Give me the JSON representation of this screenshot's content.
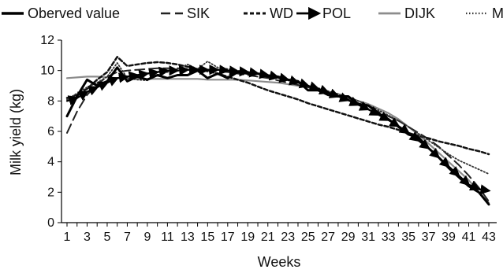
{
  "chart_data": {
    "type": "line",
    "xlabel": "Weeks",
    "ylabel": "Milk yield (kg)",
    "ylim": [
      0,
      12
    ],
    "yticks": [
      0,
      2,
      4,
      6,
      8,
      10,
      12
    ],
    "xlim": [
      1,
      43
    ],
    "x_tick_labels": [
      "1",
      "3",
      "5",
      "7",
      "9",
      "11",
      "13",
      "15",
      "17",
      "19",
      "21",
      "23",
      "25",
      "27",
      "29",
      "31",
      "33",
      "35",
      "37",
      "39",
      "41",
      "43"
    ],
    "grid": false,
    "legend_position": "top",
    "x": [
      1,
      2,
      3,
      4,
      5,
      6,
      7,
      8,
      9,
      10,
      11,
      12,
      13,
      14,
      15,
      16,
      17,
      18,
      19,
      20,
      21,
      22,
      23,
      24,
      25,
      26,
      27,
      28,
      29,
      30,
      31,
      32,
      33,
      34,
      35,
      36,
      37,
      38,
      39,
      40,
      41,
      42,
      43
    ],
    "series": [
      {
        "name": "Oberved value",
        "style": "solid-thick",
        "color": "#000000",
        "values": [
          7.0,
          8.3,
          9.4,
          9.0,
          9.3,
          10.2,
          9.3,
          9.6,
          9.4,
          9.7,
          9.5,
          9.7,
          9.7,
          10.0,
          9.5,
          9.8,
          9.5,
          9.9,
          9.8,
          9.8,
          9.6,
          9.6,
          9.4,
          9.3,
          8.7,
          8.7,
          8.4,
          8.3,
          8.3,
          7.8,
          7.7,
          7.2,
          6.8,
          6.3,
          5.8,
          5.6,
          4.9,
          4.3,
          3.6,
          3.0,
          2.4,
          2.0,
          1.2
        ]
      },
      {
        "name": "SIK",
        "style": "long-dash",
        "color": "#222222",
        "values": [
          5.9,
          7.3,
          8.4,
          9.1,
          9.6,
          9.9,
          10.0,
          10.05,
          10.1,
          10.15,
          10.15,
          10.15,
          10.1,
          10.05,
          10.0,
          9.95,
          9.9,
          9.8,
          9.7,
          9.6,
          9.5,
          9.35,
          9.2,
          9.05,
          8.9,
          8.7,
          8.5,
          8.3,
          8.1,
          7.85,
          7.6,
          7.3,
          7.0,
          6.7,
          6.3,
          5.9,
          5.5,
          5.0,
          4.4,
          3.8,
          3.1,
          2.3,
          1.4
        ]
      },
      {
        "name": "WD",
        "style": "short-dash",
        "color": "#111111",
        "values": [
          8.2,
          8.4,
          8.8,
          9.4,
          9.9,
          10.9,
          10.3,
          10.4,
          10.5,
          10.55,
          10.5,
          10.4,
          10.25,
          10.1,
          9.95,
          9.8,
          9.6,
          9.4,
          9.2,
          8.95,
          8.7,
          8.5,
          8.3,
          8.1,
          7.85,
          7.65,
          7.45,
          7.25,
          7.05,
          6.85,
          6.65,
          6.45,
          6.3,
          6.1,
          5.9,
          5.7,
          5.55,
          5.35,
          5.2,
          5.05,
          4.85,
          4.7,
          4.5
        ]
      },
      {
        "name": "POL",
        "style": "arrow",
        "color": "#000000",
        "values": [
          8.0,
          8.2,
          8.6,
          8.9,
          9.2,
          9.5,
          9.6,
          9.7,
          9.8,
          9.9,
          10.0,
          10.0,
          10.05,
          10.05,
          10.05,
          10.05,
          10.0,
          9.95,
          9.9,
          9.8,
          9.7,
          9.55,
          9.4,
          9.2,
          9.0,
          8.8,
          8.55,
          8.3,
          8.05,
          7.75,
          7.45,
          7.1,
          6.75,
          6.35,
          5.9,
          5.4,
          4.9,
          4.3,
          3.7,
          3.1,
          2.5,
          2.2,
          2.1
        ]
      },
      {
        "name": "DIJK",
        "style": "solid-grey",
        "color": "#8c8c8c",
        "values": [
          9.5,
          9.55,
          9.6,
          9.6,
          9.55,
          9.5,
          9.45,
          9.45,
          9.45,
          9.45,
          9.45,
          9.45,
          9.45,
          9.45,
          9.4,
          9.4,
          9.4,
          9.4,
          9.35,
          9.3,
          9.25,
          9.2,
          9.1,
          9.0,
          8.9,
          8.75,
          8.6,
          8.45,
          8.25,
          8.0,
          7.8,
          7.5,
          7.2,
          6.8,
          6.3,
          5.8,
          5.2,
          4.6,
          4.0,
          3.4,
          2.8,
          2.0,
          1.3
        ]
      },
      {
        "name": "MG",
        "style": "dotted",
        "color": "#333333",
        "values": [
          8.1,
          8.5,
          8.9,
          9.2,
          9.6,
          10.5,
          9.5,
          9.4,
          9.35,
          9.7,
          9.9,
          10.1,
          10.4,
          10.1,
          10.6,
          10.2,
          10.1,
          10.0,
          9.9,
          9.8,
          9.6,
          9.5,
          9.35,
          9.2,
          9.0,
          8.85,
          8.65,
          8.45,
          8.2,
          8.0,
          7.7,
          7.4,
          7.05,
          6.7,
          6.3,
          5.85,
          5.4,
          4.95,
          4.5,
          4.1,
          3.8,
          3.5,
          3.2
        ]
      }
    ]
  }
}
